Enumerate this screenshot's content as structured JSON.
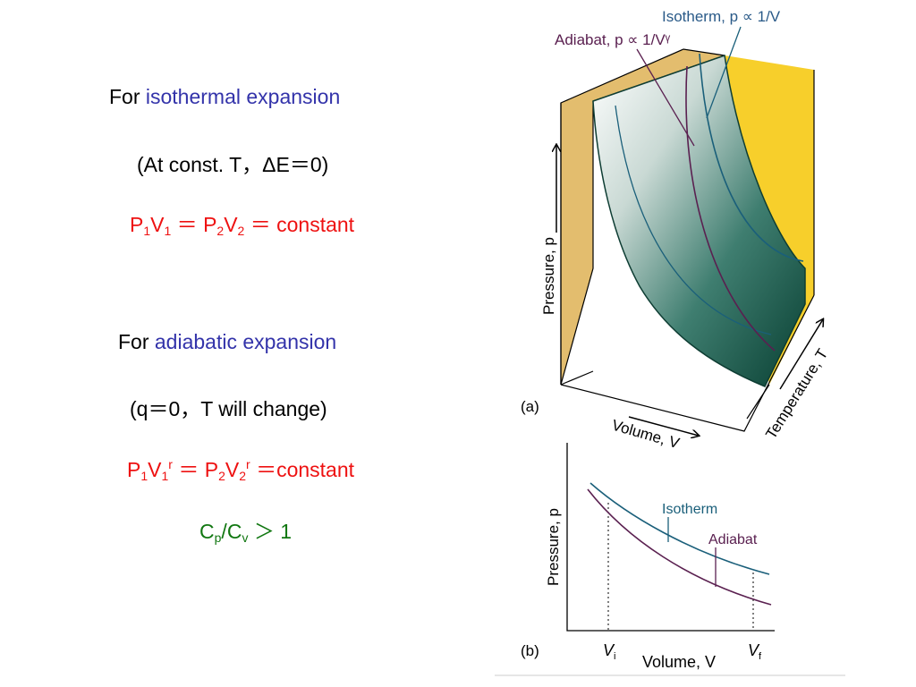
{
  "left": {
    "iso_heading": {
      "prefix": "For ",
      "term": "isothermal expansion"
    },
    "iso_condition": "(At const. T，ΔE＝0)",
    "iso_equation": {
      "p": "P",
      "one": "1",
      "v": "V",
      "eq": "＝",
      "two": "2",
      "eq_const": "＝ constant"
    },
    "adi_heading": {
      "prefix": "For ",
      "term": "adiabatic expansion"
    },
    "adi_condition": "(q＝0，T will change)",
    "adi_equation": {
      "p": "P",
      "one": "1",
      "v": "V",
      "r": "r",
      "eq": "＝",
      "two": "2",
      "eq_const": "＝constant"
    },
    "ratio": {
      "c": "C",
      "p": "p",
      "slash": "/",
      "v": "v",
      "gt": "＞ 1"
    }
  },
  "fig_a": {
    "label": "(a)",
    "isotherm_label": "Isotherm, p ∝ 1/V",
    "adiabat_label": "Adiabat, p ∝ 1/Vᵞ",
    "pressure_axis": "Pressure, p",
    "volume_axis": "Volume, V",
    "temperature_axis": "Temperature, T"
  },
  "fig_b": {
    "label": "(b)",
    "pressure_axis": "Pressure, p",
    "volume_axis": "Volume, V",
    "isotherm": "Isotherm",
    "adiabat": "Adiabat",
    "vi": "V",
    "vi_sub": "i",
    "vf": "V",
    "vf_sub": "f"
  },
  "colors": {
    "blue_text": "#3333aa",
    "red_text": "#ee1111",
    "green_text": "#117711",
    "back_wall": "#e3bd6e",
    "yellow_wall": "#f7cf2b",
    "surface_dark": "#0b4a3c",
    "isotherm_line": "#1a5f7a",
    "adiabat_line": "#5a2050"
  }
}
